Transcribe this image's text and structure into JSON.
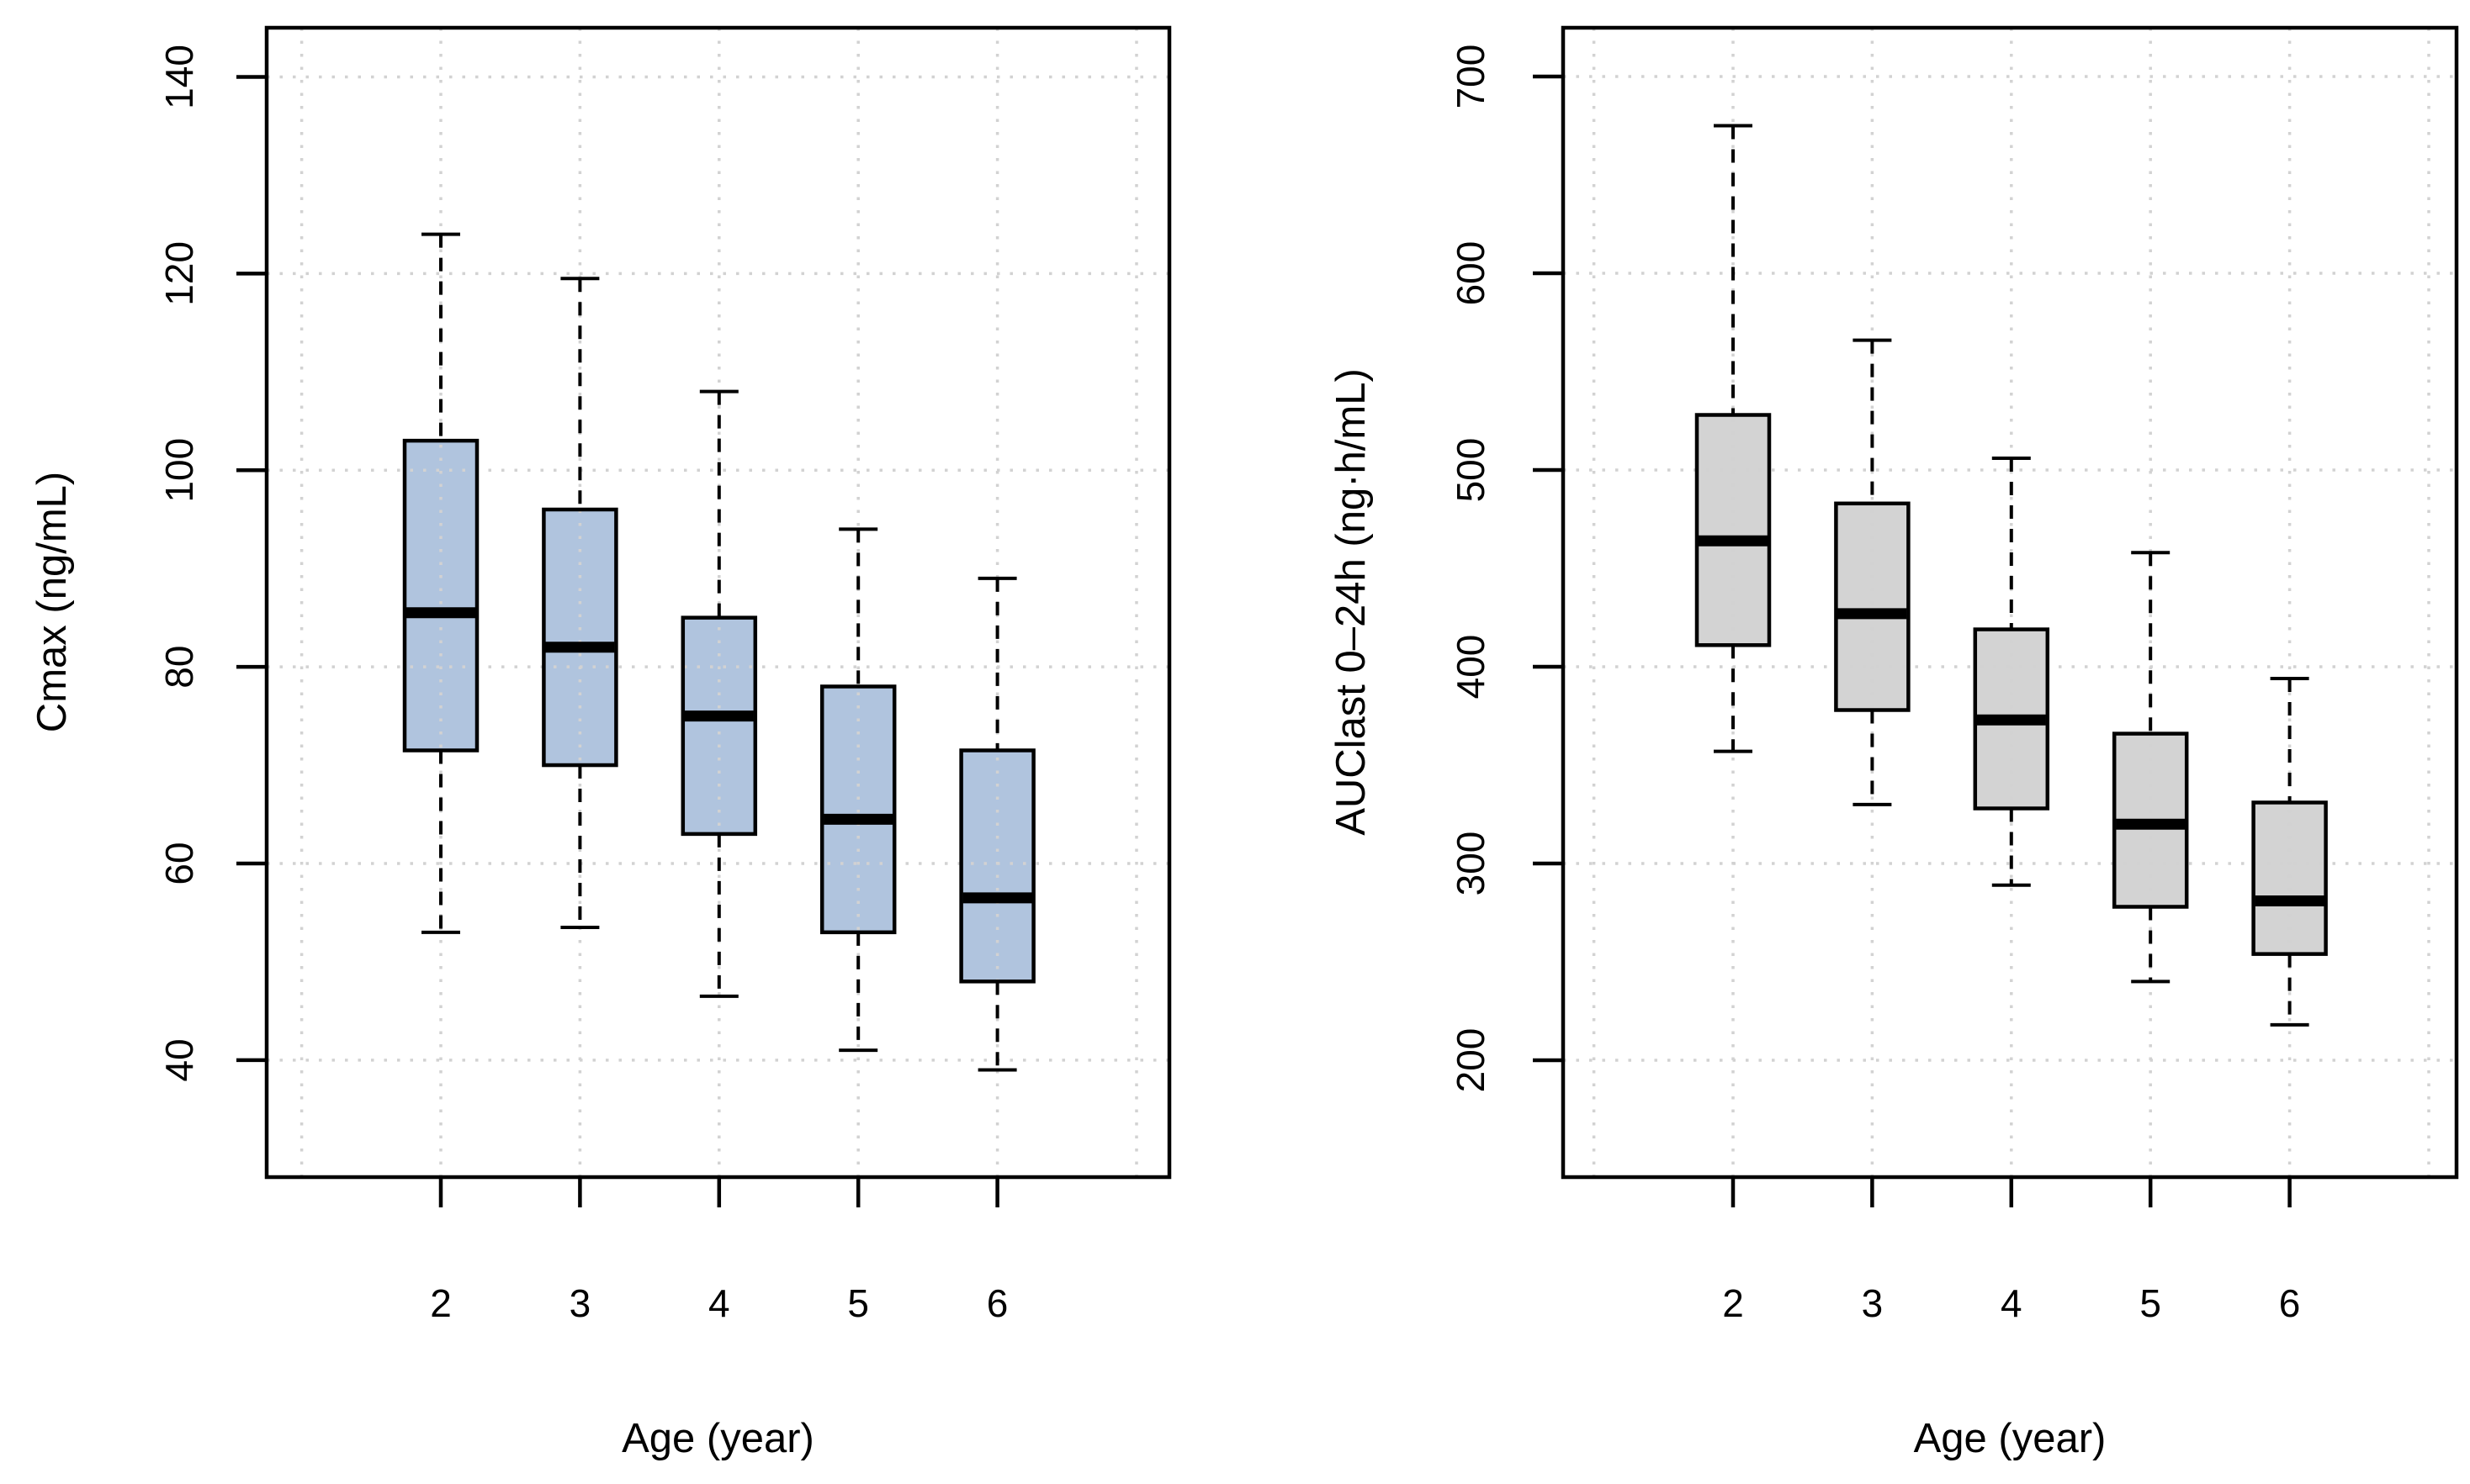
{
  "figure": {
    "background": "#ffffff",
    "description": "Two side-by-side R-style box-and-whisker plots of pharmacokinetic parameters by age"
  },
  "chart_data": [
    {
      "type": "boxplot",
      "panel": "left",
      "title": "",
      "xlabel": "Age (year)",
      "ylabel": "Cmax (ng/mL)",
      "categories": [
        "2",
        "3",
        "4",
        "5",
        "6"
      ],
      "yticks": [
        40,
        60,
        80,
        100,
        120,
        140
      ],
      "ylim": [
        28.1,
        145.0
      ],
      "grid": true,
      "legend": false,
      "box_fill": "#b0c4de",
      "box_border": "#000000",
      "median_color": "#000000",
      "grid_color": "#d2d2d2",
      "series": [
        {
          "category": "2",
          "min": 53,
          "q1": 71.5,
          "median": 85.5,
          "q3": 103,
          "max": 124
        },
        {
          "category": "3",
          "min": 53.5,
          "q1": 70,
          "median": 82,
          "q3": 96,
          "max": 119.5
        },
        {
          "category": "4",
          "min": 46.5,
          "q1": 63,
          "median": 75,
          "q3": 85,
          "max": 108
        },
        {
          "category": "5",
          "min": 41,
          "q1": 53,
          "median": 64.5,
          "q3": 78,
          "max": 94
        },
        {
          "category": "6",
          "min": 39,
          "q1": 48,
          "median": 56.5,
          "q3": 71.5,
          "max": 89
        }
      ]
    },
    {
      "type": "boxplot",
      "panel": "right",
      "title": "",
      "xlabel": "Age (year)",
      "ylabel": "AUClast 0–24h (ng·h/mL)",
      "categories": [
        "2",
        "3",
        "4",
        "5",
        "6"
      ],
      "yticks": [
        200,
        300,
        400,
        500,
        600,
        700
      ],
      "ylim": [
        140.6,
        724.8
      ],
      "grid": true,
      "legend": false,
      "box_fill": "#d3d3d3",
      "box_border": "#000000",
      "median_color": "#000000",
      "grid_color": "#d2d2d2",
      "series": [
        {
          "category": "2",
          "min": 357,
          "q1": 411,
          "median": 464,
          "q3": 528,
          "max": 675
        },
        {
          "category": "3",
          "min": 330,
          "q1": 378,
          "median": 427,
          "q3": 483,
          "max": 566
        },
        {
          "category": "4",
          "min": 289,
          "q1": 328,
          "median": 373,
          "q3": 419,
          "max": 506
        },
        {
          "category": "5",
          "min": 240,
          "q1": 278,
          "median": 320,
          "q3": 366,
          "max": 458
        },
        {
          "category": "6",
          "min": 218,
          "q1": 254,
          "median": 281,
          "q3": 331,
          "max": 394
        }
      ]
    }
  ]
}
